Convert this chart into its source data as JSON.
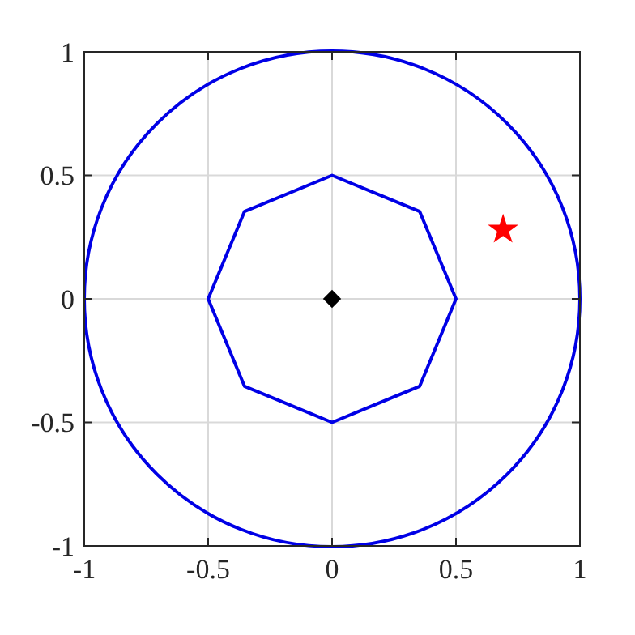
{
  "chart_data": {
    "type": "scatter",
    "xlim": [
      -1,
      1
    ],
    "ylim": [
      -1,
      1
    ],
    "xticks": [
      -1,
      -0.5,
      0,
      0.5,
      1
    ],
    "yticks": [
      -1,
      -0.5,
      0,
      0.5,
      1
    ],
    "grid": true,
    "series": [
      {
        "color": "#000000",
        "marker": "diamond",
        "x": [
          0
        ],
        "values": [
          0
        ]
      },
      {
        "color": "#ff0000",
        "marker": "star",
        "x": [
          0.69
        ],
        "values": [
          0.28
        ]
      }
    ]
  }
}
